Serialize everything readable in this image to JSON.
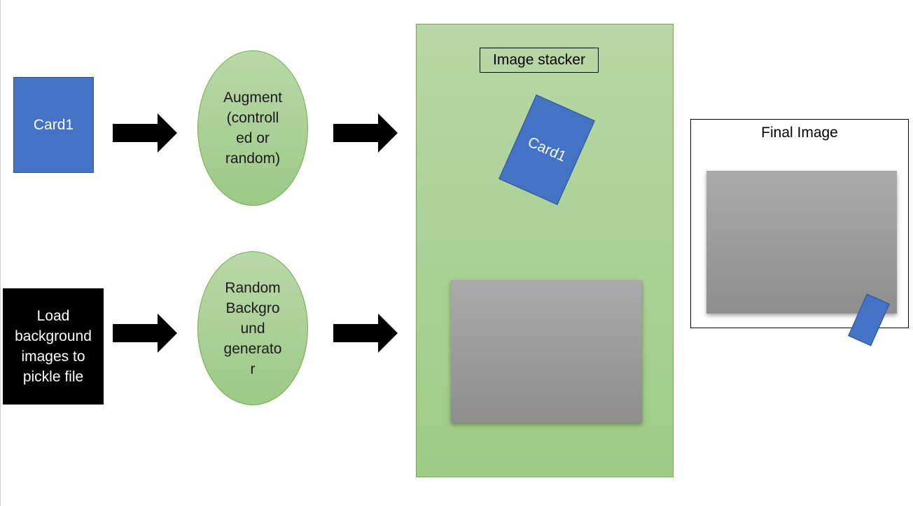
{
  "nodes": {
    "card_source": "Card1",
    "background_loader": "Load\nbackground\nimages to\npickle file",
    "augment": "Augment\n(controll\ned or\nrandom)",
    "random_background": "Random\nBackgro\nund\ngenerato\nr",
    "image_stacker_title": "Image stacker",
    "stacked_card": "Card1",
    "final_image_title": "Final Image"
  },
  "colors": {
    "card": "#4472c4",
    "process_oval": "#a9d18e",
    "stacker_panel": "#a9d18e",
    "background_image": "#9a9a9a",
    "arrow": "#000000"
  },
  "icons": [
    "right-arrow-icon"
  ]
}
